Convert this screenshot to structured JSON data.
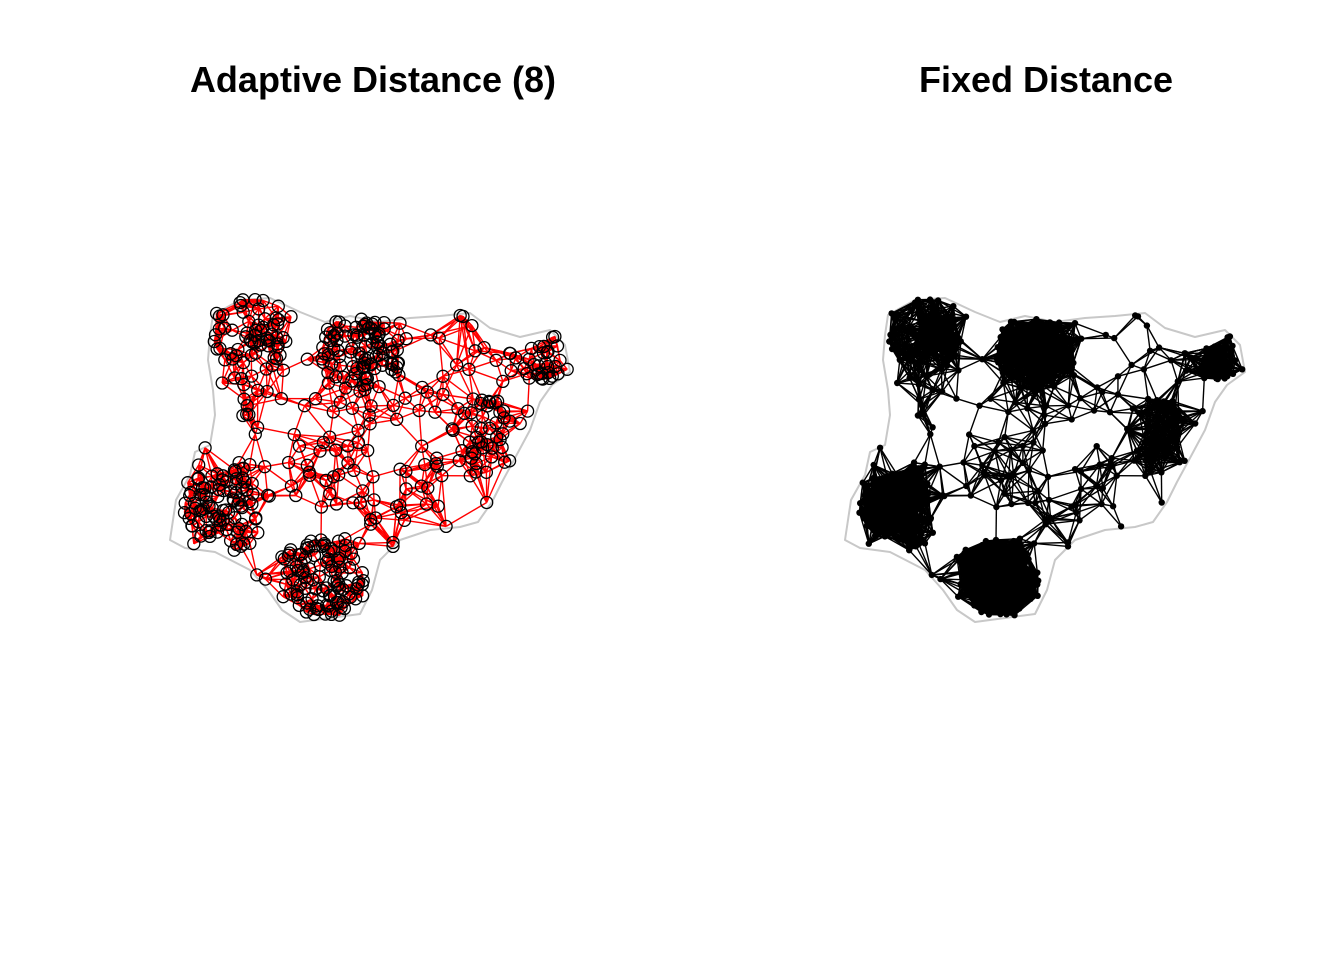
{
  "figure": {
    "panels": [
      {
        "title": "Adaptive Distance (8)",
        "link_color": "#ff0000",
        "node_color": "#000000",
        "node_style": "open-circle",
        "boundary_color": "#c8c8c8"
      },
      {
        "title": "Fixed Distance",
        "link_color": "#000000",
        "node_color": "#000000",
        "node_style": "filled-dot",
        "boundary_color": "#c8c8c8"
      }
    ]
  }
}
